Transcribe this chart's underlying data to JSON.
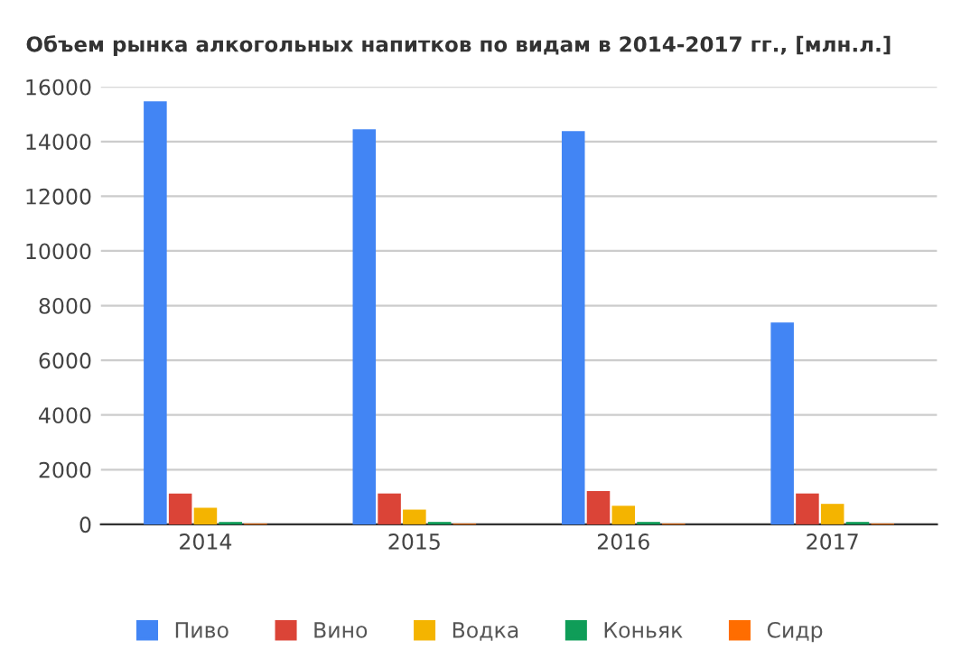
{
  "chart_data": {
    "type": "bar",
    "title": "Объем рынка алкогольных напитков по видам в 2014-2017 гг., [млн.л.]",
    "categories": [
      "2014",
      "2015",
      "2016",
      "2017"
    ],
    "series": [
      {
        "name": "Пиво",
        "color": "#4285f4",
        "values": [
          15470,
          14450,
          14380,
          7380
        ]
      },
      {
        "name": "Вино",
        "color": "#db4437",
        "values": [
          1130,
          1130,
          1220,
          1130
        ]
      },
      {
        "name": "Водка",
        "color": "#f4b400",
        "values": [
          610,
          540,
          680,
          750
        ]
      },
      {
        "name": "Коньяк",
        "color": "#0f9d58",
        "values": [
          90,
          90,
          90,
          90
        ]
      },
      {
        "name": "Сидр",
        "color": "#ff6d00",
        "values": [
          30,
          30,
          30,
          30
        ]
      }
    ],
    "ylim": [
      0,
      16000
    ],
    "yticks": [
      0,
      2000,
      4000,
      6000,
      8000,
      10000,
      12000,
      14000,
      16000
    ],
    "grid": "y",
    "legend": "bottom"
  }
}
